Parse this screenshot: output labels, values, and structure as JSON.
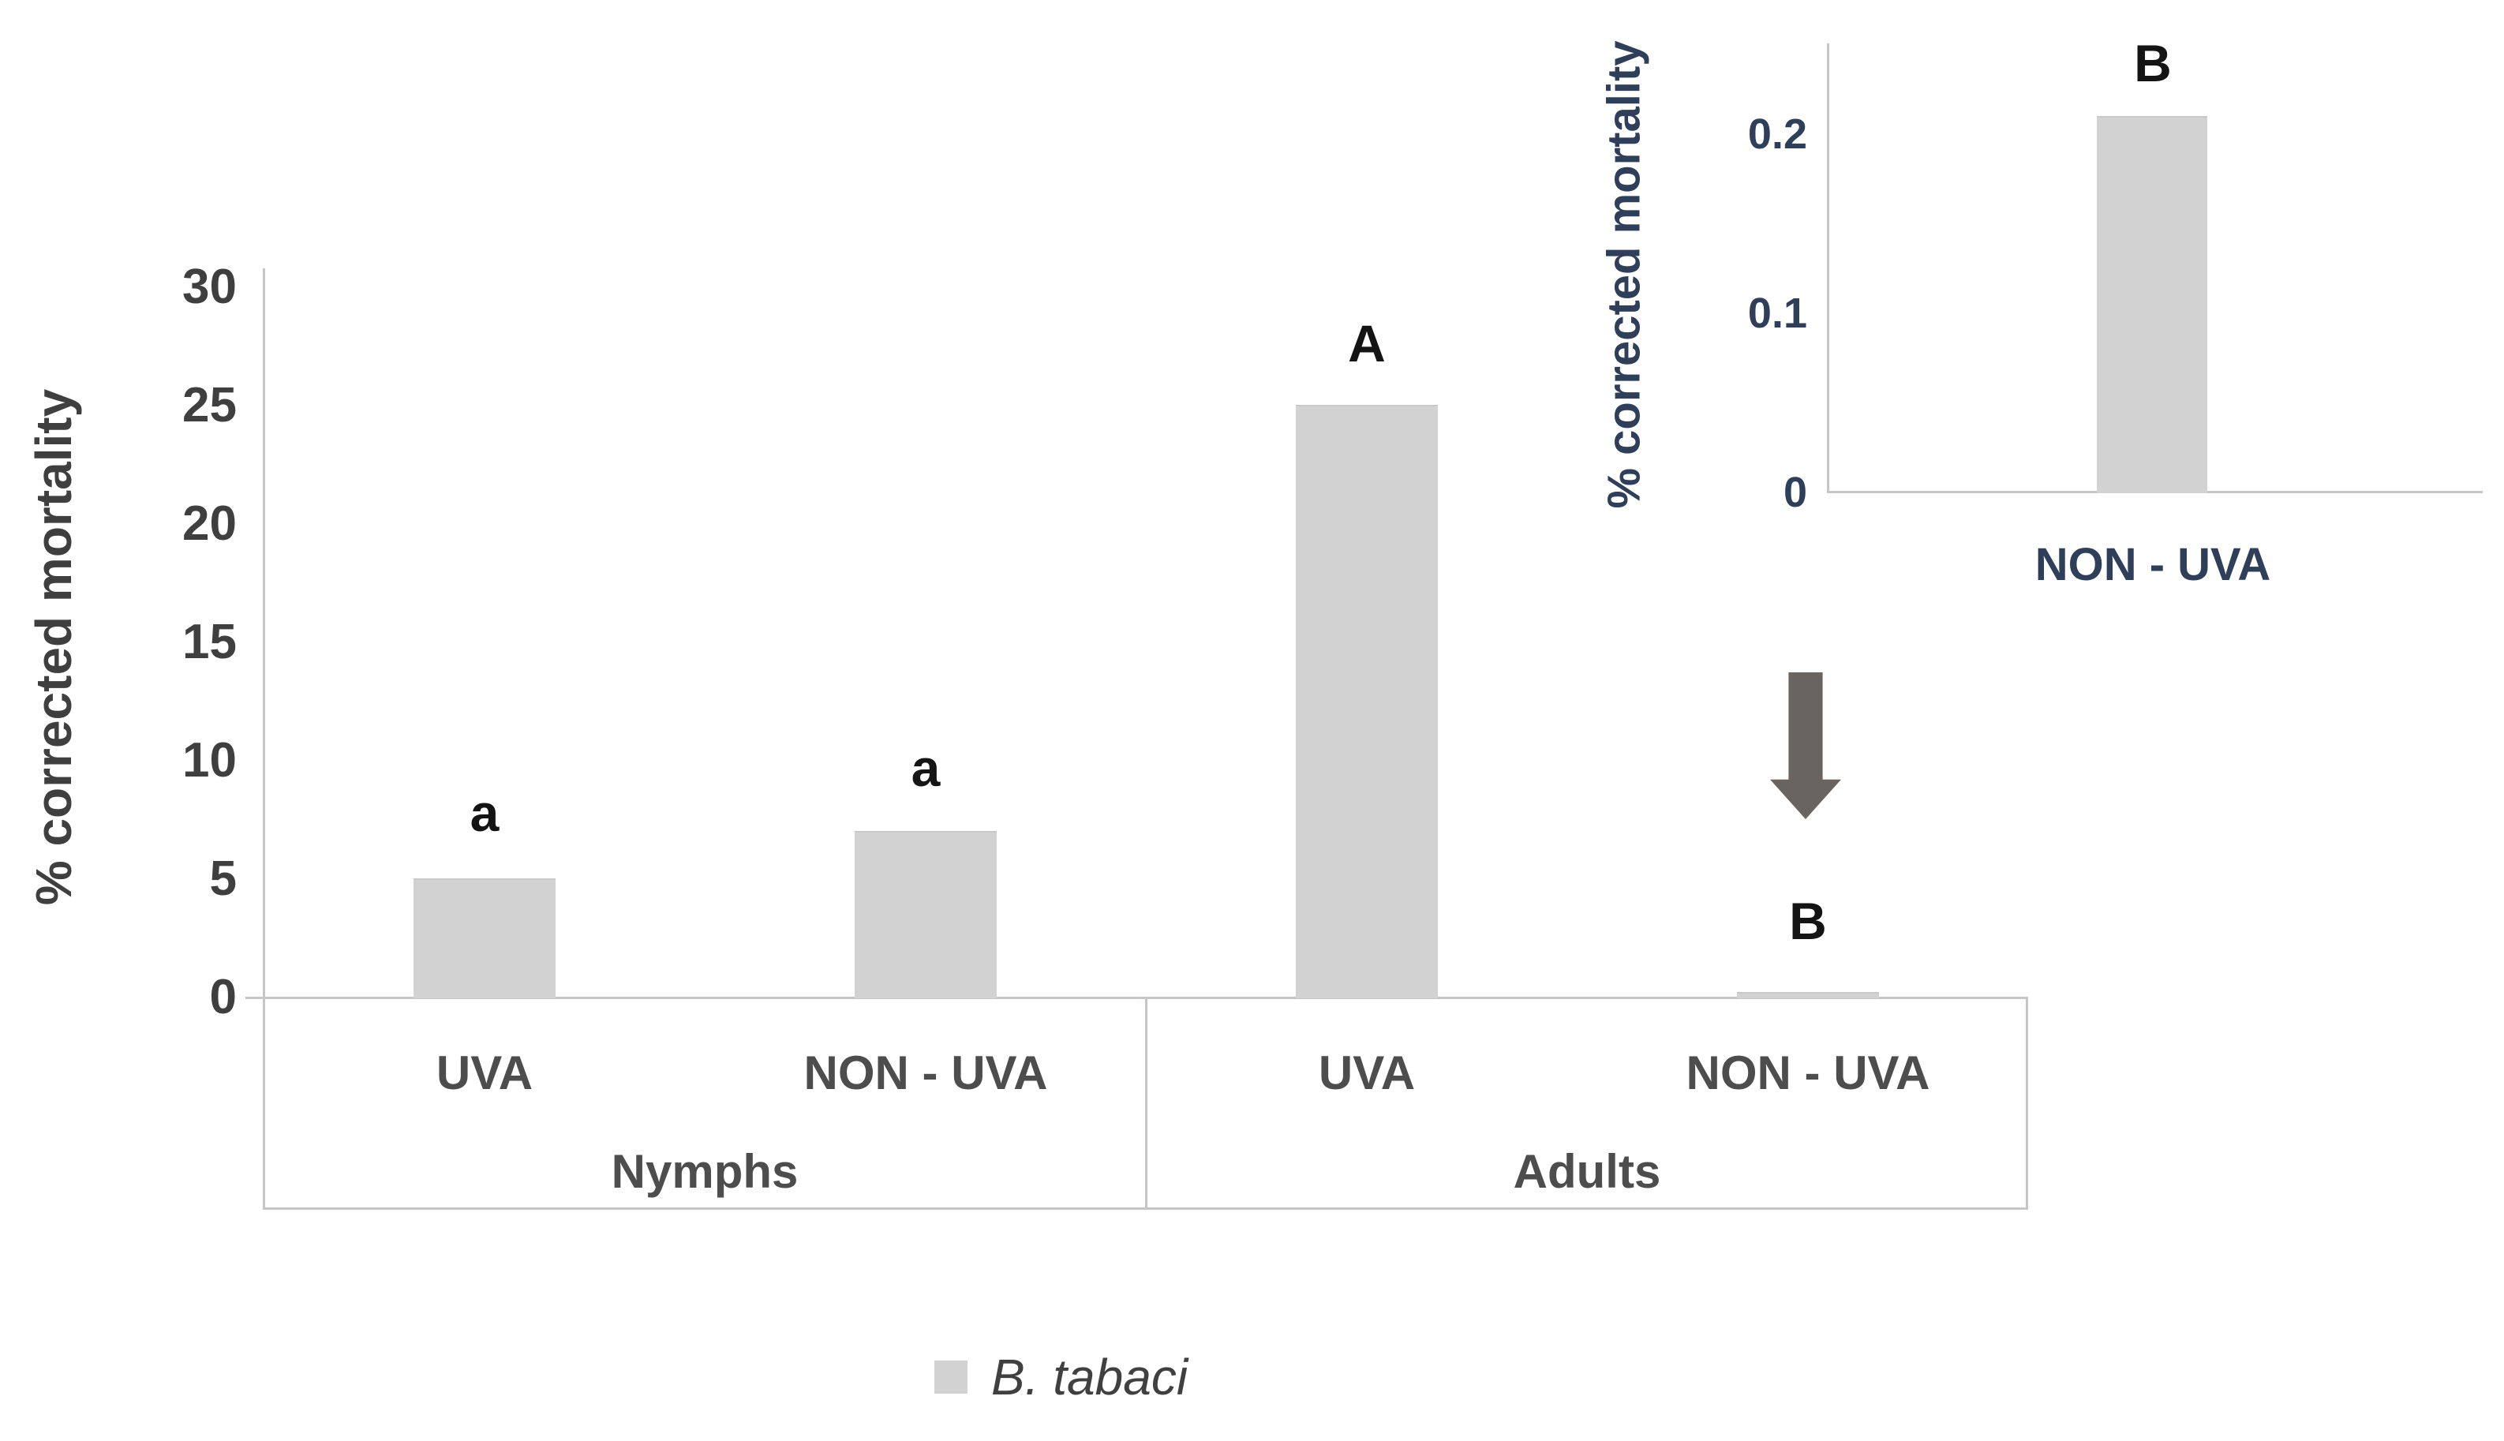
{
  "colors": {
    "bar_fill": "#d3d2d2",
    "axis_line": "#c7c5c5",
    "main_text": "#3f3f3f",
    "category_text": "#4d4d4d",
    "inset_text": "#2f3e59",
    "letter_text": "#141414",
    "arrow": "#6a6460"
  },
  "main_chart": {
    "y_axis_title": "% corrected mortality",
    "y_ticks": [
      "30",
      "25",
      "20",
      "15",
      "10",
      "5",
      "0"
    ],
    "treatment_labels": [
      "UVA",
      "NON - UVA",
      "UVA",
      "NON - UVA"
    ],
    "group_labels": [
      "Nymphs",
      "Adults"
    ]
  },
  "inset_chart": {
    "y_axis_title": "% corrected mortality",
    "y_ticks": [
      "0.2",
      "0.1",
      "0"
    ],
    "x_label": "NON - UVA",
    "letter": "B"
  },
  "legend": {
    "label": "B. tabaci"
  },
  "chart_data": [
    {
      "type": "bar",
      "title": "",
      "categories": [
        "Nymphs UVA",
        "Nymphs NON - UVA",
        "Adults UVA",
        "Adults NON - UVA"
      ],
      "x_groups": [
        {
          "label": "Nymphs",
          "categories": [
            "UVA",
            "NON - UVA"
          ]
        },
        {
          "label": "Adults",
          "categories": [
            "UVA",
            "NON - UVA"
          ]
        }
      ],
      "series": [
        {
          "name": "B. tabaci",
          "values": [
            5.0,
            7.0,
            25.0,
            0.21
          ]
        }
      ],
      "significance_letters": [
        "a",
        "a",
        "A",
        "B"
      ],
      "xlabel": "",
      "ylabel": "% corrected mortality",
      "ylim": [
        0,
        30
      ],
      "yticks": [
        0,
        5,
        10,
        15,
        20,
        25,
        30
      ],
      "grid": false,
      "legend_position": "bottom",
      "bar_color": "#d3d2d2"
    },
    {
      "type": "bar",
      "title": "",
      "inset": true,
      "inset_of": "Adults NON - UVA",
      "categories": [
        "NON - UVA"
      ],
      "series": [
        {
          "name": "B. tabaci",
          "values": [
            0.21
          ]
        }
      ],
      "significance_letters": [
        "B"
      ],
      "xlabel": "",
      "ylabel": "% corrected mortality",
      "ylim": [
        0,
        0.25
      ],
      "yticks": [
        0,
        0.1,
        0.2
      ],
      "grid": false,
      "bar_color": "#d3d2d2"
    }
  ]
}
